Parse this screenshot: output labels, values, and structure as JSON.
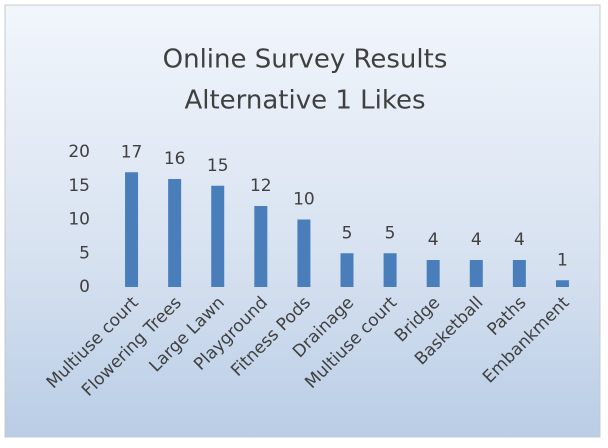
{
  "chart_data": {
    "type": "bar",
    "title": [
      "Online Survey Results",
      "Alternative 1 Likes"
    ],
    "categories": [
      "Multiuse court",
      "Flowering Trees",
      "Large Lawn",
      "Playground",
      "Fitness Pods",
      "Drainage",
      "Multiuse court",
      "Bridge",
      "Basketball",
      "Paths",
      "Embankment"
    ],
    "values": [
      17,
      16,
      15,
      12,
      10,
      5,
      5,
      4,
      4,
      4,
      1
    ],
    "color": "#4a7ebb",
    "ylim": [
      0,
      20
    ],
    "yticks": [
      0,
      5,
      10,
      15,
      20
    ],
    "grid": false,
    "data_labels": true
  }
}
